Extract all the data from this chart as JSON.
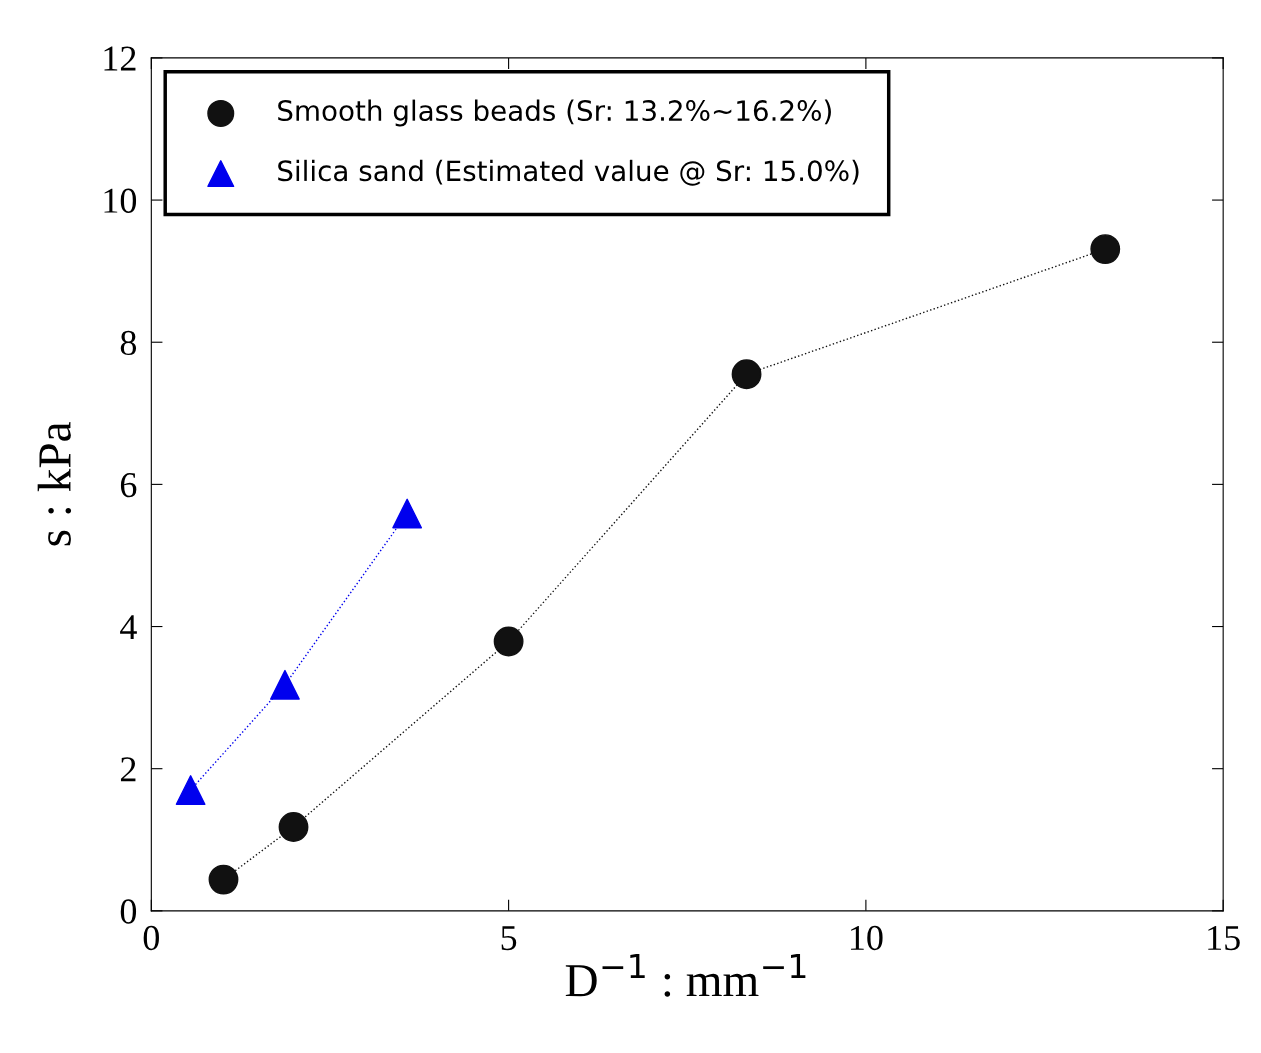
{
  "chart_data": {
    "type": "line",
    "xlabel": "D$^{−1}$ : mm$^{−1}$",
    "ylabel": "s : kPa",
    "xlim": [
      0,
      15
    ],
    "ylim": [
      0,
      12
    ],
    "xticks": [
      0,
      5,
      10,
      15
    ],
    "yticks": [
      0,
      2,
      4,
      6,
      8,
      10,
      12
    ],
    "grid": false,
    "legend": "top left",
    "line_style": "dotted",
    "series": [
      {
        "name": "Smooth glass beads (Sr: 13.2%∼16.2%)",
        "color": "#111111",
        "marker": "circle",
        "x": [
          1.01,
          1.99,
          5.0,
          8.33,
          13.35
        ],
        "values": [
          0.44,
          1.18,
          3.79,
          7.55,
          9.31
        ]
      },
      {
        "name": "Silica sand (Estimated value @ Sr: 15.0%)",
        "color": "#0000ee",
        "marker": "triangle",
        "x": [
          0.55,
          1.87,
          3.58
        ],
        "values": [
          1.7,
          3.18,
          5.59
        ]
      }
    ]
  }
}
